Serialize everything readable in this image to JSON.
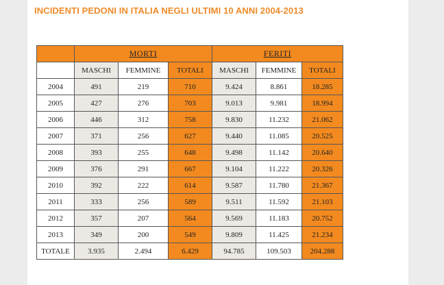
{
  "title": "INCIDENTI PEDONI IN ITALIA NEGLI ULTIMI 10 ANNI 2004-2013",
  "colors": {
    "accent": "#f38a1f",
    "title": "#ee8b2a",
    "shaded": "#ece9e5"
  },
  "table": {
    "group_morti": "MORTI",
    "group_feriti": "FERITI",
    "sub_headers": [
      "MASCHI",
      "FEMMINE",
      "TOTALI",
      "MASCHI",
      "FEMMINE",
      "TOTALI"
    ],
    "rows": [
      [
        "2004",
        "491",
        "219",
        "710",
        "9.424",
        "8.861",
        "18.285"
      ],
      [
        "2005",
        "427",
        "276",
        "703",
        "9.013",
        "9.981",
        "18.994"
      ],
      [
        "2006",
        "446",
        "312",
        "758",
        "9.830",
        "11.232",
        "21.062"
      ],
      [
        "2007",
        "371",
        "256",
        "627",
        "9.440",
        "11.085",
        "20.525"
      ],
      [
        "2008",
        "393",
        "255",
        "648",
        "9.498",
        "11.142",
        "20.640"
      ],
      [
        "2009",
        "376",
        "291",
        "667",
        "9.104",
        "11.222",
        "20.326"
      ],
      [
        "2010",
        "392",
        "222",
        "614",
        "9.587",
        "11.780",
        "21.367"
      ],
      [
        "2011",
        "333",
        "256",
        "589",
        "9.511",
        "11.592",
        "21.103"
      ],
      [
        "2012",
        "357",
        "207",
        "564",
        "9.569",
        "11.183",
        "20.752"
      ],
      [
        "2013",
        "349",
        "200",
        "549",
        "9.809",
        "11.425",
        "21.234"
      ]
    ],
    "total_row": [
      "TOTALE",
      "3.935",
      "2.494",
      "6.429",
      "94.785",
      "109.503",
      "204.288"
    ]
  }
}
